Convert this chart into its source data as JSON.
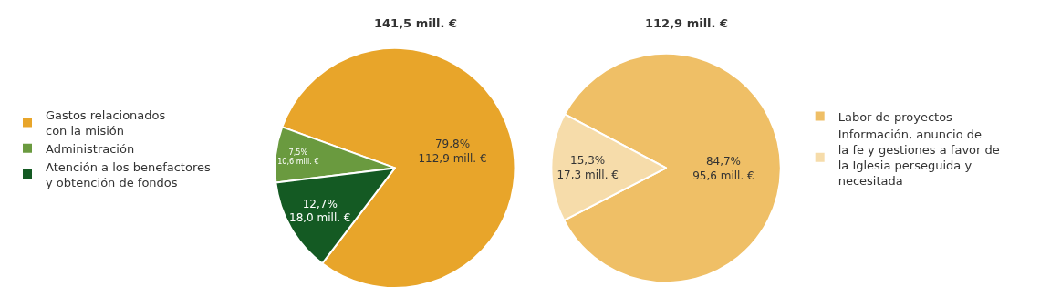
{
  "chart_data": [
    {
      "type": "pie",
      "title": "141,5 mill. €",
      "categories": [
        "Gastos relacionados\ncon la misión",
        "Administración",
        "Atención a los benefactores\ny obtención de fondos"
      ],
      "values": [
        112.9,
        10.6,
        18.0
      ],
      "colors": [
        "#e8a52a",
        "#6a9a3f",
        "#145a23"
      ],
      "value_labels": [
        "79,8%\n112,9 mill. €",
        "7,5%\n10,6 mill. €",
        "12,7%\n18,0 mill. €"
      ],
      "legend": "left"
    },
    {
      "type": "pie",
      "title": "112,9 mill. €",
      "categories": [
        "Labor de proyectos",
        "Información, anuncio de\nla fe y gestiones a favor de\nla Iglesia perseguida y\nnecesitada"
      ],
      "values": [
        95.6,
        17.3
      ],
      "colors": [
        "#efbf66",
        "#f6dcaa"
      ],
      "value_labels": [
        "84,7%\n95,6 mill. €",
        "15,3%\n17,3 mill. €"
      ],
      "legend": "right"
    }
  ]
}
